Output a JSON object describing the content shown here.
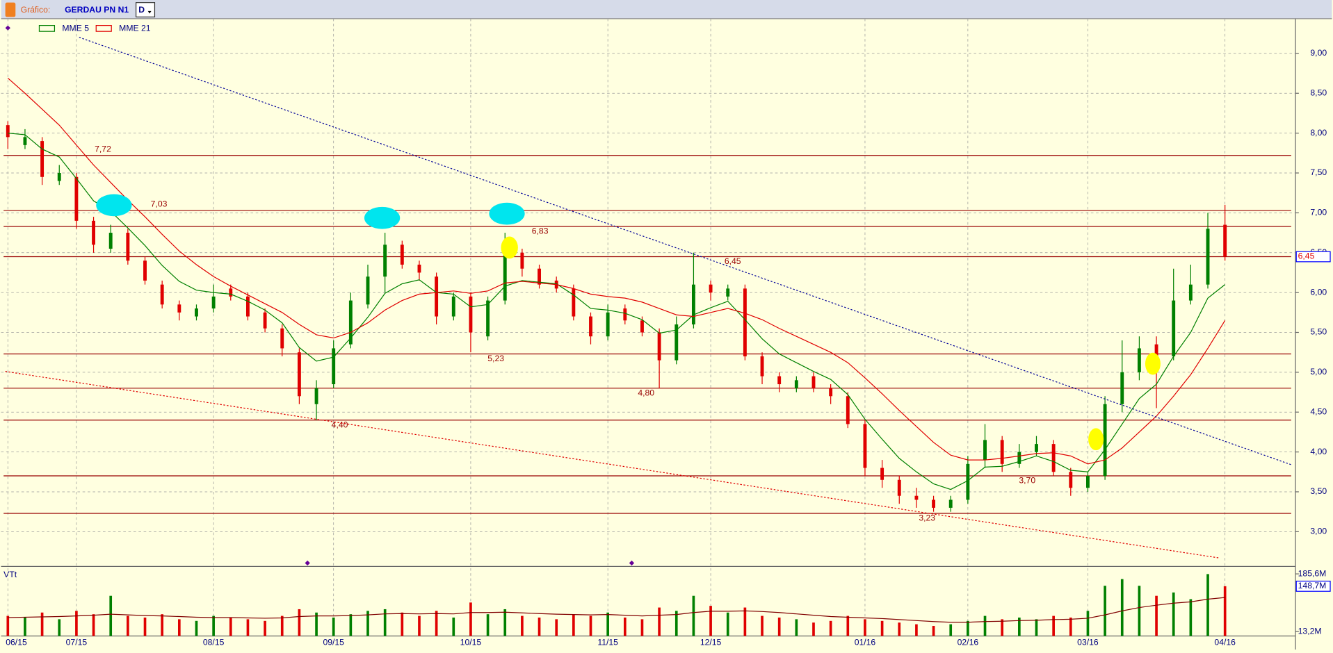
{
  "header": {
    "label": "Gráfico:",
    "symbol": "GERDAU PN N1",
    "period": "D"
  },
  "chart_data": [
    {
      "type": "candlestick",
      "categories": [
        "06/15",
        null,
        null,
        null,
        "07/15",
        null,
        null,
        null,
        null,
        null,
        null,
        null,
        "08/15",
        null,
        null,
        null,
        null,
        null,
        null,
        "09/15",
        null,
        null,
        null,
        null,
        null,
        null,
        null,
        "10/15",
        null,
        null,
        null,
        null,
        null,
        null,
        null,
        "11/15",
        null,
        null,
        null,
        null,
        null,
        "12/15",
        null,
        null,
        null,
        null,
        null,
        null,
        null,
        null,
        "01/16",
        null,
        null,
        null,
        null,
        null,
        "02/16",
        null,
        null,
        null,
        null,
        null,
        null,
        "03/16",
        null,
        null,
        null,
        null,
        null,
        null,
        null,
        "04/16"
      ],
      "open": [
        8.1,
        7.85,
        7.9,
        7.4,
        7.45,
        6.9,
        6.55,
        6.75,
        6.4,
        6.1,
        5.85,
        5.7,
        5.8,
        6.05,
        5.95,
        5.75,
        5.55,
        5.25,
        4.6,
        4.85,
        5.35,
        5.85,
        6.2,
        6.6,
        6.35,
        6.2,
        5.7,
        5.95,
        5.45,
        5.9,
        6.5,
        6.3,
        6.15,
        6.05,
        5.7,
        5.45,
        5.8,
        5.65,
        5.5,
        5.15,
        5.6,
        6.1,
        5.95,
        6.05,
        5.2,
        4.95,
        4.8,
        4.95,
        4.8,
        4.7,
        4.35,
        3.8,
        3.65,
        3.45,
        3.4,
        3.3,
        3.4,
        3.9,
        4.15,
        3.85,
        4.0,
        4.1,
        3.75,
        3.55,
        3.7,
        4.6,
        5.0,
        5.35,
        5.2,
        5.9,
        6.1,
        6.85
      ],
      "high": [
        8.15,
        8.05,
        7.95,
        7.6,
        7.5,
        6.95,
        6.85,
        6.8,
        6.45,
        6.15,
        5.9,
        5.85,
        6.1,
        6.1,
        6.0,
        5.8,
        5.6,
        5.3,
        4.9,
        5.4,
        6.0,
        6.35,
        6.75,
        6.65,
        6.4,
        6.25,
        6.0,
        6.0,
        5.95,
        6.75,
        6.55,
        6.35,
        6.2,
        6.1,
        5.75,
        5.85,
        5.85,
        5.7,
        5.55,
        5.7,
        6.5,
        6.15,
        6.1,
        6.1,
        5.25,
        5.0,
        4.95,
        5.0,
        4.85,
        4.75,
        4.4,
        3.9,
        3.7,
        3.55,
        3.45,
        3.45,
        3.95,
        4.35,
        4.2,
        4.1,
        4.2,
        4.15,
        3.8,
        3.75,
        4.7,
        5.4,
        5.45,
        5.45,
        6.3,
        6.35,
        7.0,
        7.1
      ],
      "low": [
        7.8,
        7.8,
        7.35,
        7.35,
        6.8,
        6.5,
        6.5,
        6.35,
        6.1,
        5.8,
        5.65,
        5.65,
        5.75,
        5.9,
        5.65,
        5.5,
        5.2,
        4.6,
        4.4,
        4.8,
        5.3,
        5.8,
        6.0,
        6.3,
        6.15,
        5.6,
        5.65,
        5.25,
        5.4,
        5.85,
        6.2,
        6.05,
        6.0,
        5.65,
        5.35,
        5.4,
        5.6,
        5.45,
        4.8,
        5.1,
        5.55,
        5.9,
        5.9,
        5.15,
        4.85,
        4.75,
        4.75,
        4.75,
        4.6,
        4.3,
        3.7,
        3.55,
        3.35,
        3.3,
        3.25,
        3.25,
        3.35,
        3.8,
        3.75,
        3.8,
        3.95,
        3.7,
        3.45,
        3.5,
        3.65,
        4.5,
        4.9,
        4.55,
        5.15,
        5.85,
        6.05,
        6.4
      ],
      "close": [
        7.95,
        7.95,
        7.45,
        7.5,
        6.9,
        6.6,
        6.75,
        6.4,
        6.15,
        5.85,
        5.75,
        5.8,
        5.95,
        5.95,
        5.7,
        5.55,
        5.3,
        4.7,
        4.8,
        5.3,
        5.9,
        6.2,
        6.6,
        6.35,
        6.25,
        5.7,
        5.95,
        5.5,
        5.9,
        6.55,
        6.3,
        6.1,
        6.05,
        5.7,
        5.45,
        5.75,
        5.65,
        5.5,
        5.15,
        5.6,
        6.1,
        6.0,
        6.05,
        5.2,
        4.95,
        4.85,
        4.9,
        4.8,
        4.7,
        4.35,
        3.8,
        3.65,
        3.45,
        3.4,
        3.3,
        3.4,
        3.85,
        4.15,
        3.85,
        4.0,
        4.1,
        3.75,
        3.55,
        3.7,
        4.6,
        5.0,
        5.3,
        5.2,
        5.9,
        6.1,
        6.8,
        6.45
      ],
      "up_color": "#008000",
      "down_color": "#e00000",
      "series": [
        {
          "name": "MME  5",
          "color": "#008000",
          "values": [
            8.0,
            7.98,
            7.8,
            7.7,
            7.43,
            7.15,
            7.02,
            6.81,
            6.59,
            6.34,
            6.14,
            6.03,
            6.0,
            5.98,
            5.89,
            5.78,
            5.62,
            5.31,
            5.14,
            5.19,
            5.43,
            5.69,
            5.99,
            6.11,
            6.16,
            6.0,
            5.98,
            5.82,
            5.85,
            6.08,
            6.15,
            6.13,
            6.11,
            5.97,
            5.8,
            5.78,
            5.74,
            5.66,
            5.49,
            5.53,
            5.72,
            5.81,
            5.89,
            5.66,
            5.42,
            5.23,
            5.12,
            5.01,
            4.91,
            4.72,
            4.41,
            4.16,
            3.92,
            3.75,
            3.6,
            3.53,
            3.64,
            3.81,
            3.82,
            3.88,
            3.95,
            3.88,
            3.77,
            3.75,
            4.03,
            4.35,
            4.67,
            4.85,
            5.2,
            5.5,
            5.93,
            6.1
          ]
        },
        {
          "name": "MME 21",
          "color": "#e00000",
          "values": [
            8.69,
            8.5,
            8.3,
            8.1,
            7.85,
            7.6,
            7.38,
            7.16,
            6.95,
            6.73,
            6.52,
            6.35,
            6.2,
            6.08,
            5.97,
            5.86,
            5.75,
            5.6,
            5.47,
            5.43,
            5.5,
            5.62,
            5.78,
            5.9,
            5.98,
            6.0,
            6.02,
            5.99,
            6.02,
            6.12,
            6.14,
            6.12,
            6.1,
            6.05,
            5.98,
            5.95,
            5.93,
            5.88,
            5.8,
            5.72,
            5.7,
            5.75,
            5.8,
            5.74,
            5.66,
            5.55,
            5.45,
            5.35,
            5.25,
            5.12,
            4.93,
            4.73,
            4.52,
            4.32,
            4.12,
            3.96,
            3.9,
            3.9,
            3.92,
            3.95,
            3.98,
            3.99,
            3.95,
            3.85,
            3.9,
            4.05,
            4.25,
            4.45,
            4.7,
            4.97,
            5.3,
            5.65
          ]
        }
      ],
      "levels": [
        {
          "value": 7.72,
          "label": "7,72"
        },
        {
          "value": 7.03,
          "label": "7,03"
        },
        {
          "value": 6.83,
          "label": "6,83"
        },
        {
          "value": 6.45,
          "label": "6,45"
        },
        {
          "value": 5.23,
          "label": "5,23"
        },
        {
          "value": 4.8,
          "label": "4,80"
        },
        {
          "value": 4.4,
          "label": "4,40"
        },
        {
          "value": 3.7,
          "label": "3,70"
        },
        {
          "value": 3.23,
          "label": "3,23"
        }
      ],
      "level_color": "#990000",
      "current_price": {
        "value": 6.45,
        "label": "6,45"
      },
      "ylim": [
        2.564,
        9.436
      ],
      "yticks": [
        {
          "value": 3,
          "label": "3,00"
        },
        {
          "value": 3.5,
          "label": "3,50"
        },
        {
          "value": 4,
          "label": "4,00"
        },
        {
          "value": 4.5,
          "label": "4,50"
        },
        {
          "value": 5,
          "label": "5,00"
        },
        {
          "value": 5.5,
          "label": "5,50"
        },
        {
          "value": 6,
          "label": "6,00"
        },
        {
          "value": 6.5,
          "label": "6,50"
        },
        {
          "value": 7,
          "label": "7,00"
        },
        {
          "value": 7.5,
          "label": "7,50"
        },
        {
          "value": 8,
          "label": "8,00"
        },
        {
          "value": 8.5,
          "label": "8,50"
        },
        {
          "value": 9,
          "label": "9,00"
        }
      ],
      "grid": true
    },
    {
      "type": "bar",
      "title": "VTt",
      "values": [
        60,
        55,
        70,
        50,
        75,
        65,
        120,
        60,
        55,
        65,
        50,
        45,
        60,
        55,
        50,
        45,
        60,
        80,
        70,
        55,
        65,
        75,
        80,
        70,
        60,
        75,
        55,
        100,
        65,
        80,
        60,
        55,
        50,
        65,
        60,
        70,
        55,
        50,
        85,
        75,
        120,
        90,
        70,
        85,
        60,
        55,
        50,
        40,
        45,
        60,
        50,
        45,
        40,
        35,
        30,
        35,
        45,
        60,
        50,
        55,
        50,
        60,
        55,
        75,
        150,
        170,
        150,
        120,
        130,
        110,
        185,
        148.7
      ],
      "series": [
        {
          "color": "#800000",
          "values": [
            55,
            56,
            57,
            58,
            60,
            62,
            65,
            63,
            61,
            60,
            58,
            56,
            55,
            55,
            54,
            53,
            54,
            58,
            60,
            60,
            61,
            63,
            66,
            67,
            66,
            67,
            66,
            70,
            70,
            71,
            69,
            67,
            65,
            64,
            63,
            64,
            62,
            60,
            62,
            64,
            70,
            74,
            74,
            75,
            73,
            70,
            66,
            62,
            58,
            56,
            54,
            52,
            49,
            46,
            43,
            41,
            41,
            43,
            44,
            46,
            47,
            49,
            50,
            53,
            63,
            75,
            85,
            92,
            98,
            102,
            110,
            115
          ]
        }
      ],
      "current_value": {
        "value": 148.7,
        "label": "148,7M"
      },
      "ylim": [
        0,
        202.8
      ],
      "yticks": [
        {
          "value": 13.2,
          "label": "13,2M"
        },
        {
          "value": 185.6,
          "label": "185,6M"
        }
      ]
    }
  ]
}
